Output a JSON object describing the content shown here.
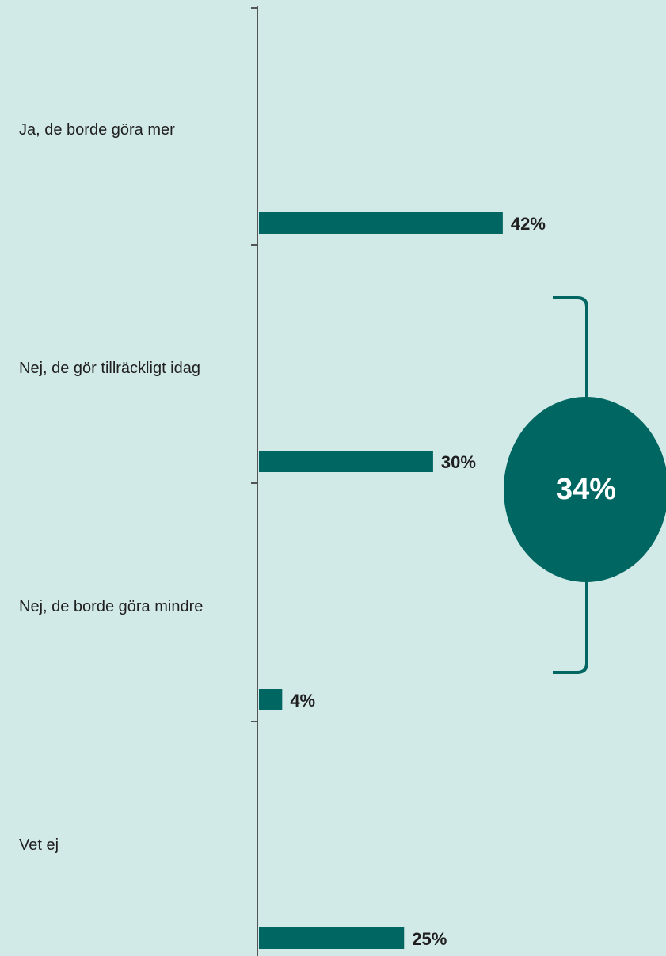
{
  "chart_data": {
    "type": "bar",
    "orientation": "horizontal",
    "categories": [
      "Ja, de borde göra mer",
      "Nej, de gör tillräckligt idag",
      "Nej, de borde göra mindre",
      "Vet ej"
    ],
    "values": [
      42,
      30,
      4,
      25
    ],
    "value_labels": [
      "42%",
      "30%",
      "4%",
      "25%"
    ],
    "unit": "%",
    "xlim": [
      0,
      100
    ],
    "grid": false,
    "legend": "none",
    "callout": {
      "label": "34%",
      "value": 34,
      "spans_categories": [
        "Nej, de gör tillräckligt idag",
        "Nej, de borde göra mindre"
      ]
    },
    "colors": {
      "bar": "#006661",
      "callout": "#006661",
      "background": "#d1e9e7",
      "axis": "#555555"
    }
  }
}
